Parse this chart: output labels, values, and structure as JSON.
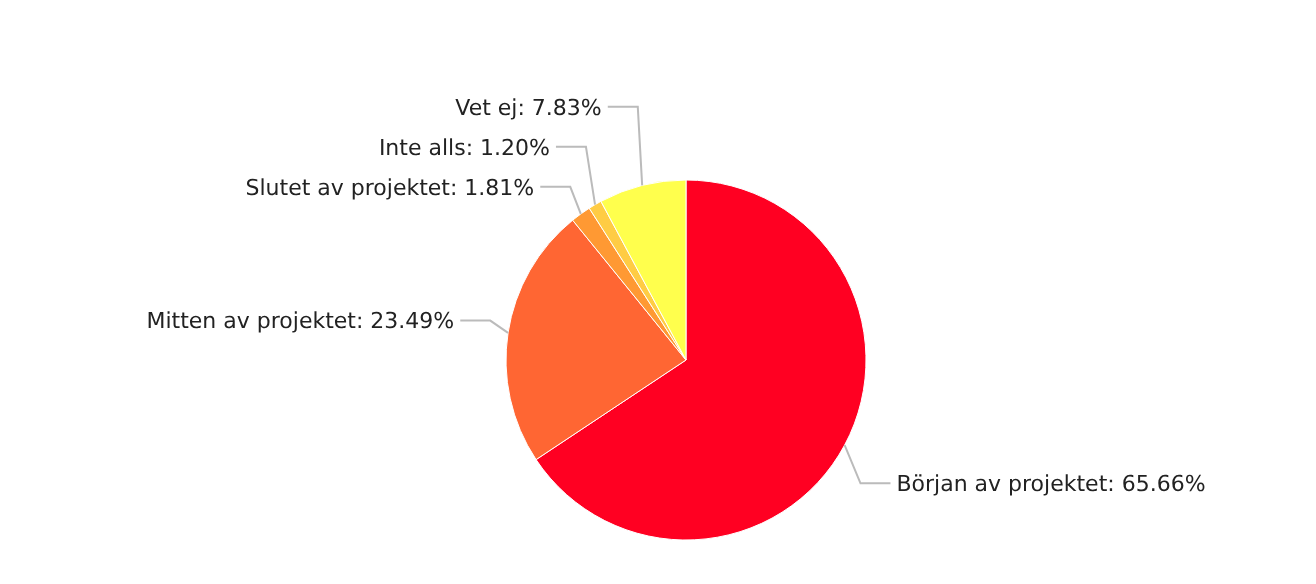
{
  "chart_data": {
    "type": "pie",
    "categories": [
      "Början av projektet",
      "Mitten av projektet",
      "Slutet av projektet",
      "Inte alls",
      "Vet ej"
    ],
    "values": [
      65.66,
      23.49,
      1.81,
      1.2,
      7.83
    ],
    "value_labels": [
      "65.66%",
      "23.49%",
      "1.81%",
      "1.20%",
      "7.83%"
    ],
    "colors": [
      "#ff0022",
      "#ff6633",
      "#ff9933",
      "#ffcc44",
      "#ffff4d"
    ],
    "legend": false
  }
}
